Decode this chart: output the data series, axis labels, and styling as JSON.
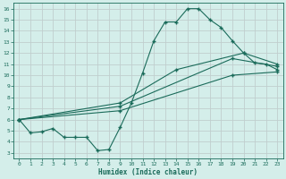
{
  "xlabel": "Humidex (Indice chaleur)",
  "ylabel": "",
  "bg_color": "#d4eeea",
  "line_color": "#1a6b5a",
  "grid_color": "#c0cece",
  "xlim": [
    -0.5,
    23.5
  ],
  "ylim": [
    2.5,
    16.5
  ],
  "xticks": [
    0,
    1,
    2,
    3,
    4,
    5,
    6,
    7,
    8,
    9,
    10,
    11,
    12,
    13,
    14,
    15,
    16,
    17,
    18,
    19,
    20,
    21,
    22,
    23
  ],
  "yticks": [
    3,
    4,
    5,
    6,
    7,
    8,
    9,
    10,
    11,
    12,
    13,
    14,
    15,
    16
  ],
  "line1_x": [
    0,
    1,
    2,
    3,
    4,
    5,
    6,
    7,
    8,
    9,
    10,
    11,
    12,
    13,
    14,
    15,
    16,
    17,
    18,
    19,
    20,
    21,
    22,
    23
  ],
  "line1_y": [
    6.0,
    4.8,
    4.9,
    5.2,
    4.4,
    4.4,
    4.4,
    3.2,
    3.3,
    5.3,
    7.5,
    10.2,
    13.1,
    14.8,
    14.8,
    16.0,
    16.0,
    15.0,
    14.3,
    13.1,
    12.0,
    11.1,
    11.0,
    10.5
  ],
  "line2_x": [
    0,
    9,
    14,
    20,
    23
  ],
  "line2_y": [
    6.0,
    7.5,
    10.5,
    12.0,
    11.0
  ],
  "line3_x": [
    0,
    9,
    19,
    23
  ],
  "line3_y": [
    6.0,
    7.2,
    11.5,
    10.8
  ],
  "line4_x": [
    0,
    9,
    19,
    23
  ],
  "line4_y": [
    6.0,
    6.8,
    10.0,
    10.3
  ]
}
